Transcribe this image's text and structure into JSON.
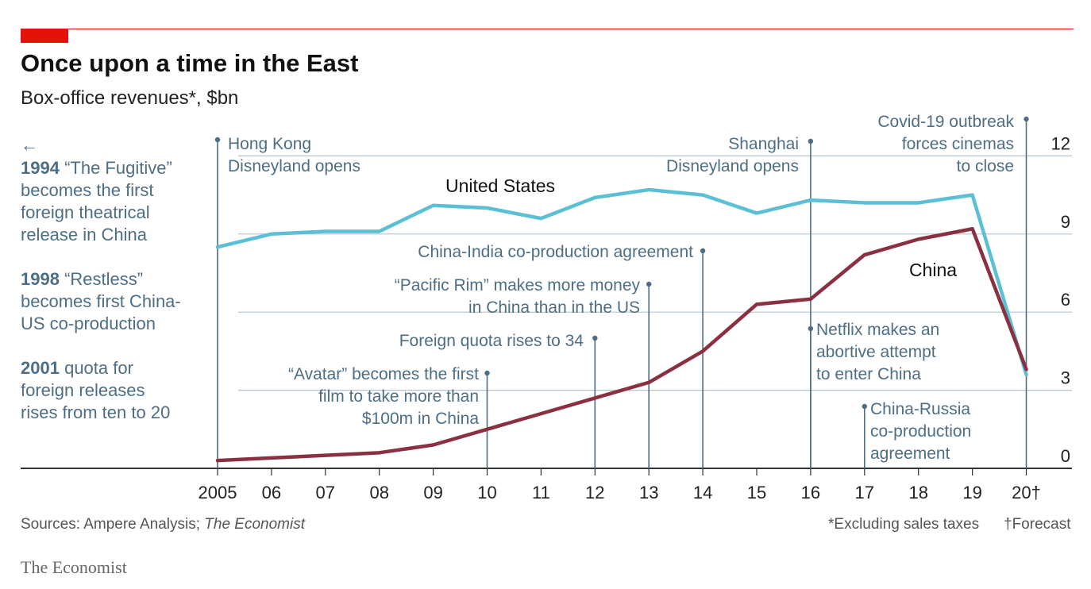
{
  "header": {
    "title": "Once upon a time in the East",
    "subtitle": "Box-office revenues*, $bn"
  },
  "side_notes": {
    "arrow": "←",
    "n1994_year": "1994",
    "n1994_lines": [
      "“The Fugitive”",
      "becomes the first",
      "foreign theatrical",
      "release in China"
    ],
    "n1998_year": "1998",
    "n1998_lines": [
      "“Restless”",
      "becomes first China-",
      "US co-production"
    ],
    "n2001_year": "2001",
    "n2001_lines": [
      "quota for",
      "foreign releases",
      "rises from ten to 20"
    ]
  },
  "footer": {
    "sources_prefix": "Sources: Ampere Analysis; ",
    "sources_italic": "The Economist",
    "note1": "*Excluding sales taxes",
    "note2": "†Forecast",
    "brand": "The Economist"
  },
  "colors": {
    "us": "#5bc0d4",
    "china": "#8b3041",
    "annotation": "#4d6e84",
    "grid": "#b7c4cd",
    "accent": "#e3120b"
  },
  "chart_data": {
    "type": "line",
    "title": "Once upon a time in the East",
    "subtitle": "Box-office revenues*, $bn",
    "x": [
      "2005",
      "06",
      "07",
      "08",
      "09",
      "10",
      "11",
      "12",
      "13",
      "14",
      "15",
      "16",
      "17",
      "18",
      "19",
      "20†"
    ],
    "series": [
      {
        "name": "United States",
        "values": [
          8.5,
          9.0,
          9.1,
          9.1,
          10.1,
          10.0,
          9.6,
          10.4,
          10.7,
          10.5,
          9.8,
          10.3,
          10.2,
          10.2,
          10.5,
          3.6
        ]
      },
      {
        "name": "China",
        "values": [
          0.3,
          0.4,
          0.5,
          0.6,
          0.9,
          1.5,
          2.1,
          2.7,
          3.3,
          4.5,
          6.3,
          6.5,
          8.2,
          8.8,
          9.2,
          3.8
        ]
      }
    ],
    "ylim": [
      0,
      12.5
    ],
    "yticks": [
      "0",
      "3",
      "6",
      "9",
      "12"
    ],
    "annotations": [
      {
        "x": "2005",
        "text": [
          "Hong Kong",
          "Disneyland opens"
        ]
      },
      {
        "x": "10",
        "text": [
          "“Avatar” becomes the first",
          "film to take more than",
          "$100m in China"
        ]
      },
      {
        "x": "12",
        "text": [
          "Foreign quota rises to 34"
        ]
      },
      {
        "x": "13",
        "text": [
          "“Pacific Rim” makes more money",
          "in China than in the US"
        ]
      },
      {
        "x": "14",
        "text": [
          "China-India co-production agreement"
        ]
      },
      {
        "x": "16",
        "text": [
          "Shanghai",
          "Disneyland opens"
        ]
      },
      {
        "x": "16",
        "text": [
          "Netflix makes an",
          "abortive attempt",
          "to enter China"
        ]
      },
      {
        "x": "17",
        "text": [
          "China-Russia",
          "co-production",
          "agreement"
        ]
      },
      {
        "x": "20†",
        "text": [
          "Covid-19 outbreak",
          "forces cinemas",
          "to close"
        ]
      }
    ]
  }
}
